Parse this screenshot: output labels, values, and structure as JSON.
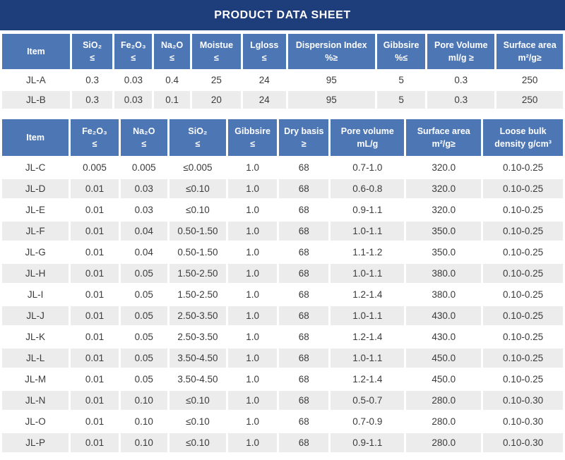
{
  "title": "PRODUCT DATA SHEET",
  "colors": {
    "title_bar": "#1e3d7b",
    "header": "#4d76b5",
    "row_alt": "#ececec",
    "text": "#3b3b3b"
  },
  "table1": {
    "columns": [
      "Item",
      "SiO₂\n≤",
      "Fe₂O₃\n≤",
      "Na₂O\n≤",
      "Moistue\n≤",
      "Lgloss\n≤",
      "Dispersion Index\n%≥",
      "Gibbsire\n%≤",
      "Pore Volume\nml/g ≥",
      "Surface area\nm²/g≥"
    ],
    "rows": [
      [
        "JL-A",
        "0.3",
        "0.03",
        "0.4",
        "25",
        "24",
        "95",
        "5",
        "0.3",
        "250"
      ],
      [
        "JL-B",
        "0.3",
        "0.03",
        "0.1",
        "20",
        "24",
        "95",
        "5",
        "0.3",
        "250"
      ]
    ]
  },
  "table2": {
    "columns": [
      "Item",
      "Fe₂O₃\n≤",
      "Na₂O\n≤",
      "SiO₂\n≤",
      "Gibbsire\n≤",
      "Dry basis\n≥",
      "Pore volume\nmL/g",
      "Surface area\nm²/g≥",
      "Loose bulk\ndensity g/cm³"
    ],
    "rows": [
      [
        "JL-C",
        "0.005",
        "0.005",
        "≤0.005",
        "1.0",
        "68",
        "0.7-1.0",
        "320.0",
        "0.10-0.25"
      ],
      [
        "JL-D",
        "0.01",
        "0.03",
        "≤0.10",
        "1.0",
        "68",
        "0.6-0.8",
        "320.0",
        "0.10-0.25"
      ],
      [
        "JL-E",
        "0.01",
        "0.03",
        "≤0.10",
        "1.0",
        "68",
        "0.9-1.1",
        "320.0",
        "0.10-0.25"
      ],
      [
        "JL-F",
        "0.01",
        "0.04",
        "0.50-1.50",
        "1.0",
        "68",
        "1.0-1.1",
        "350.0",
        "0.10-0.25"
      ],
      [
        "JL-G",
        "0.01",
        "0.04",
        "0.50-1.50",
        "1.0",
        "68",
        "1.1-1.2",
        "350.0",
        "0.10-0.25"
      ],
      [
        "JL-H",
        "0.01",
        "0.05",
        "1.50-2.50",
        "1.0",
        "68",
        "1.0-1.1",
        "380.0",
        "0.10-0.25"
      ],
      [
        "JL-I",
        "0.01",
        "0.05",
        "1.50-2.50",
        "1.0",
        "68",
        "1.2-1.4",
        "380.0",
        "0.10-0.25"
      ],
      [
        "JL-J",
        "0.01",
        "0.05",
        "2.50-3.50",
        "1.0",
        "68",
        "1.0-1.1",
        "430.0",
        "0.10-0.25"
      ],
      [
        "JL-K",
        "0.01",
        "0.05",
        "2.50-3.50",
        "1.0",
        "68",
        "1.2-1.4",
        "430.0",
        "0.10-0.25"
      ],
      [
        "JL-L",
        "0.01",
        "0.05",
        "3.50-4.50",
        "1.0",
        "68",
        "1.0-1.1",
        "450.0",
        "0.10-0.25"
      ],
      [
        "JL-M",
        "0.01",
        "0.05",
        "3.50-4.50",
        "1.0",
        "68",
        "1.2-1.4",
        "450.0",
        "0.10-0.25"
      ],
      [
        "JL-N",
        "0.01",
        "0.10",
        "≤0.10",
        "1.0",
        "68",
        "0.5-0.7",
        "280.0",
        "0.10-0.30"
      ],
      [
        "JL-O",
        "0.01",
        "0.10",
        "≤0.10",
        "1.0",
        "68",
        "0.7-0.9",
        "280.0",
        "0.10-0.30"
      ],
      [
        "JL-P",
        "0.01",
        "0.10",
        "≤0.10",
        "1.0",
        "68",
        "0.9-1.1",
        "280.0",
        "0.10-0.30"
      ]
    ]
  }
}
